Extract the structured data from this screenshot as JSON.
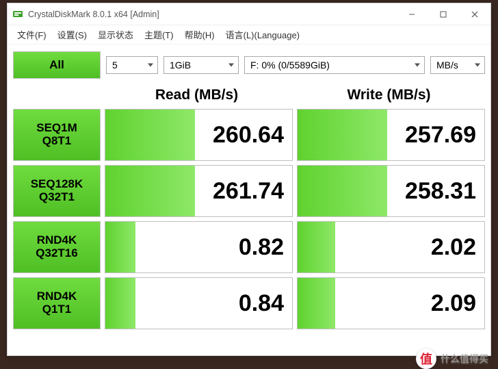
{
  "window": {
    "title": "CrystalDiskMark 8.0.1 x64 [Admin]"
  },
  "menus": {
    "file": "文件(F)",
    "settings": "设置(S)",
    "showstatus": "显示状态",
    "theme": "主题(T)",
    "help": "帮助(H)",
    "lang": "语言(L)(Language)"
  },
  "toolbar": {
    "all_label": "All",
    "iterations": "5",
    "testsize": "1GiB",
    "drive": "F: 0% (0/5589GiB)",
    "unit": "MB/s"
  },
  "headers": {
    "read": "Read (MB/s)",
    "write": "Write (MB/s)"
  },
  "rows": {
    "r0": {
      "labelTop": "SEQ1M",
      "labelBot": "Q8T1",
      "read": "260.64",
      "write": "257.69",
      "readFill": 48,
      "writeFill": 48
    },
    "r1": {
      "labelTop": "SEQ128K",
      "labelBot": "Q32T1",
      "read": "261.74",
      "write": "258.31",
      "readFill": 48,
      "writeFill": 48
    },
    "r2": {
      "labelTop": "RND4K",
      "labelBot": "Q32T16",
      "read": "0.82",
      "write": "2.02",
      "readFill": 16,
      "writeFill": 20
    },
    "r3": {
      "labelTop": "RND4K",
      "labelBot": "Q1T1",
      "read": "0.84",
      "write": "2.09",
      "readFill": 16,
      "writeFill": 20
    }
  },
  "watermark": {
    "glyph": "值",
    "text": "什么值得买"
  },
  "colors": {
    "greenFillFrom": "#5fd22f",
    "greenFillTo": "#8ee868",
    "btnFrom": "#6fdc3e",
    "btnTo": "#4fbf25",
    "border": "#bfbfbf"
  }
}
